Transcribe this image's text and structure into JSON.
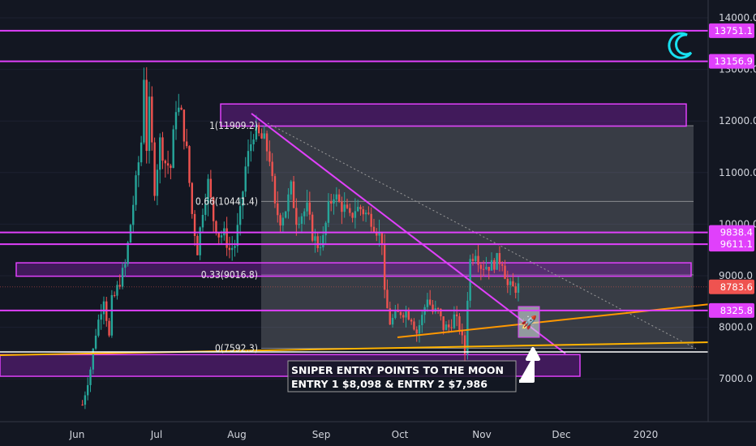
{
  "chart_data": {
    "type": "candlestick",
    "series_name": "",
    "ylim": [
      6300,
      14400
    ],
    "y_ticks": [
      "14000.0",
      "13000.0",
      "12000.0",
      "11000.0",
      "10000.0",
      "9000.0",
      "8000.0",
      "7000.0"
    ],
    "x_ticks": [
      "Jun",
      "Jul",
      "Aug",
      "Sep",
      "Oct",
      "Nov",
      "Dec",
      "2020"
    ],
    "last_price": {
      "value": 8783.6,
      "label": "8783.6"
    },
    "horizontal_levels": [
      {
        "value": 13751.1,
        "label": "13751.1"
      },
      {
        "value": 13156.9,
        "label": "13156.9"
      },
      {
        "value": 9838.4,
        "label": "9838.4"
      },
      {
        "value": 9611.1,
        "label": "9611.1"
      },
      {
        "value": 8325.8,
        "label": "8325.8"
      }
    ],
    "fib_levels": [
      {
        "label": "1(11909.2)",
        "value": 11909.2
      },
      {
        "label": "0.66(10441.4)",
        "value": 10441.4
      },
      {
        "label": "0.33(9016.8)",
        "value": 9016.8
      },
      {
        "label": "0(7592.3)",
        "value": 7592.3
      }
    ],
    "zones": [
      {
        "from": 11900,
        "to": 12330
      },
      {
        "from": 8990,
        "to": 9250
      },
      {
        "from": 7050,
        "to": 7470
      }
    ],
    "annotation": {
      "line1": "SNIPER ENTRY POINTS TO THE MOON",
      "line2": "ENTRY 1 $8,098 & ENTRY 2 $7,986"
    },
    "price_path": [
      [
        "May 20",
        6500
      ],
      [
        "May 23",
        7200
      ],
      [
        "May 25",
        7900
      ],
      [
        "May 28",
        8600
      ],
      [
        "May 30",
        7800
      ],
      [
        "Jun 1",
        8400
      ],
      [
        "Jun 3",
        8700
      ],
      [
        "Jun 5",
        8800
      ],
      [
        "Jun 7",
        7700
      ],
      [
        "Jun 9",
        8000
      ],
      [
        "Jun 11",
        8200
      ],
      [
        "Jun 13",
        8400
      ],
      [
        "Jun 15",
        8600
      ],
      [
        "Jun 17",
        8900
      ],
      [
        "Jun 19",
        9200
      ],
      [
        "Jun 21",
        10000
      ],
      [
        "Jun 23",
        10800
      ],
      [
        "Jun 25",
        11600
      ],
      [
        "Jun 26",
        12900
      ],
      [
        "Jun 27",
        11500
      ],
      [
        "Jun 28",
        12300
      ],
      [
        "Jun 30",
        10700
      ],
      [
        "Jul 2",
        11600
      ],
      [
        "Jul 4",
        11200
      ],
      [
        "Jul 6",
        11100
      ],
      [
        "Jul 8",
        12300
      ],
      [
        "Jul 10",
        12100
      ],
      [
        "Jul 12",
        11400
      ],
      [
        "Jul 14",
        10200
      ],
      [
        "Jul 16",
        9500
      ],
      [
        "Jul 18",
        10300
      ],
      [
        "Jul 20",
        10800
      ],
      [
        "Jul 22",
        10100
      ],
      [
        "Jul 24",
        9800
      ],
      [
        "Jul 26",
        9800
      ],
      [
        "Jul 28",
        9500
      ],
      [
        "Jul 30",
        9600
      ],
      [
        "Aug 1",
        10200
      ],
      [
        "Aug 3",
        11100
      ],
      [
        "Aug 6",
        11800
      ],
      [
        "Aug 8",
        11700
      ],
      [
        "Aug 10",
        11600
      ],
      [
        "Aug 12",
        11300
      ],
      [
        "Aug 14",
        10300
      ],
      [
        "Aug 16",
        10100
      ],
      [
        "Aug 18",
        10300
      ],
      [
        "Aug 20",
        10700
      ],
      [
        "Aug 22",
        10100
      ],
      [
        "Aug 24",
        10200
      ],
      [
        "Aug 26",
        10300
      ],
      [
        "Aug 28",
        9800
      ],
      [
        "Aug 30",
        9600
      ],
      [
        "Sep 1",
        9700
      ],
      [
        "Sep 3",
        10300
      ],
      [
        "Sep 5",
        10600
      ],
      [
        "Sep 7",
        10400
      ],
      [
        "Sep 9",
        10300
      ],
      [
        "Sep 11",
        10100
      ],
      [
        "Sep 13",
        10300
      ],
      [
        "Sep 15",
        10300
      ],
      [
        "Sep 17",
        10200
      ],
      [
        "Sep 19",
        10100
      ],
      [
        "Sep 21",
        9900
      ],
      [
        "Sep 23",
        9700
      ],
      [
        "Sep 24",
        8600
      ],
      [
        "Sep 26",
        8100
      ],
      [
        "Sep 28",
        8200
      ],
      [
        "Sep 30",
        8300
      ],
      [
        "Oct 2",
        8300
      ],
      [
        "Oct 4",
        8200
      ],
      [
        "Oct 6",
        7900
      ],
      [
        "Oct 8",
        8200
      ],
      [
        "Oct 10",
        8600
      ],
      [
        "Oct 12",
        8300
      ],
      [
        "Oct 14",
        8300
      ],
      [
        "Oct 16",
        8000
      ],
      [
        "Oct 18",
        8000
      ],
      [
        "Oct 20",
        8200
      ],
      [
        "Oct 22",
        8000
      ],
      [
        "Oct 24",
        7500
      ],
      [
        "Oct 25",
        8600
      ],
      [
        "Oct 26",
        9300
      ],
      [
        "Oct 28",
        9500
      ],
      [
        "Oct 30",
        9200
      ],
      [
        "Nov 1",
        9200
      ],
      [
        "Nov 3",
        9200
      ],
      [
        "Nov 5",
        9300
      ],
      [
        "Nov 7",
        9300
      ],
      [
        "Nov 9",
        8800
      ],
      [
        "Nov 11",
        8750
      ],
      [
        "Nov 13",
        8783.6
      ]
    ]
  }
}
